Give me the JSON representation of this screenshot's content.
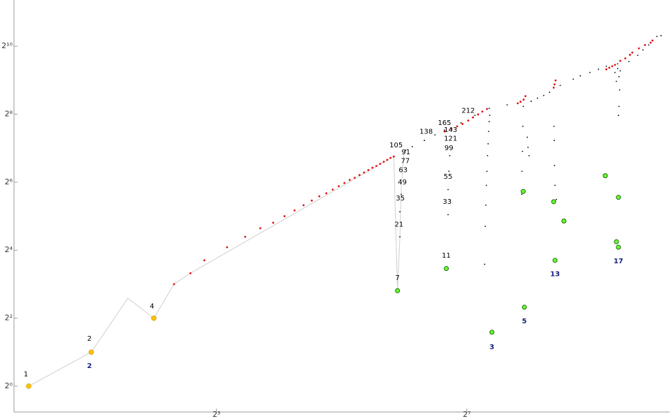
{
  "chart_data": {
    "type": "scatter",
    "xscale": "log2",
    "yscale": "log2",
    "xlim": [
      0.85,
      1209
    ],
    "ylim": [
      0.59,
      2628
    ],
    "xticks": [
      {
        "value": 8,
        "label": "2³"
      },
      {
        "value": 128,
        "label": "2⁷"
      }
    ],
    "yticks": [
      {
        "value": 1,
        "label": "2⁰"
      },
      {
        "value": 4,
        "label": "2²"
      },
      {
        "value": 16,
        "label": "2⁴"
      },
      {
        "value": 64,
        "label": "2⁶"
      },
      {
        "value": 256,
        "label": "2⁸"
      },
      {
        "value": 1024,
        "label": "2¹⁰"
      }
    ],
    "series": [
      {
        "marker": "line",
        "color": "#cfcfcf",
        "x": [
          1,
          2,
          3,
          4,
          5,
          6,
          57,
          59.4,
          61,
          62,
          64
        ],
        "values": [
          1,
          2,
          6,
          4,
          8,
          10,
          108,
          7,
          21,
          60,
          123
        ]
      },
      {
        "marker": "dot",
        "color": "#e01010",
        "x": [
          5,
          6,
          7,
          9,
          11,
          13,
          15,
          17,
          19,
          21,
          23,
          25,
          27,
          29,
          31,
          33,
          35,
          37,
          39,
          41,
          43,
          45,
          47,
          49,
          51,
          53,
          55,
          57
        ],
        "values": [
          8,
          10,
          13,
          17,
          21,
          25,
          28,
          32,
          36,
          40,
          44,
          48,
          51,
          55,
          59,
          63,
          67,
          70,
          74,
          78,
          82,
          86,
          89,
          93,
          97,
          101,
          105,
          108
        ]
      },
      {
        "marker": "small",
        "color": "#000000",
        "x": [
          65,
          70,
          80,
          90,
          100,
          120,
          140,
          164,
          200,
          261,
          280,
          300,
          320,
          360,
          416,
          450,
          500,
          550,
          600,
          680,
          771,
          850,
          900,
          960,
          1050,
          1100
        ],
        "values": [
          123,
          132,
          150,
          168,
          185,
          215,
          250,
          288,
          310,
          333,
          355,
          375,
          400,
          460,
          523,
          560,
          600,
          640,
          680,
          715,
          749,
          850,
          950,
          1050,
          1250,
          1270
        ]
      },
      {
        "marker": "dot",
        "color": "#e01010",
        "x": [
          100,
          108,
          115,
          122,
          130,
          137,
          145,
          152,
          160,
          225,
          232,
          240,
          245,
          335,
          338,
          342,
          600,
          620,
          640,
          660,
          700,
          740,
          780,
          800,
          860,
          920,
          980,
          1000
        ],
        "values": [
          180,
          190,
          200,
          210,
          225,
          240,
          255,
          270,
          285,
          320,
          330,
          345,
          370,
          440,
          470,
          510,
          640,
          660,
          680,
          700,
          760,
          800,
          860,
          900,
          980,
          1050,
          1100,
          1150
        ]
      },
      {
        "marker": "small",
        "color": "#000000",
        "x": [
          61,
          61,
          62,
          104,
          104,
          105,
          106,
          165,
          164,
          163,
          162,
          161,
          160,
          159,
          158,
          157,
          156,
          239,
          238,
          237,
          236,
          235,
          250,
          252,
          255,
          336,
          337,
          338,
          340,
          345,
          660,
          670,
          680,
          690,
          700,
          686,
          690,
          695
        ],
        "values": [
          21,
          35,
          50,
          33,
          55,
          80,
          110,
          250,
          220,
          180,
          140,
          110,
          80,
          60,
          40,
          26,
          12,
          300,
          200,
          120,
          80,
          50,
          160,
          130,
          110,
          200,
          150,
          90,
          60,
          45,
          600,
          500,
          650,
          550,
          620,
          250,
          300,
          420
        ]
      },
      {
        "marker": "halo",
        "color": "#ffc000",
        "x": [
          1,
          2,
          4
        ],
        "values": [
          1,
          2,
          4
        ]
      },
      {
        "marker": "green",
        "color": "#66ff33",
        "x": [
          59.4,
          102,
          169,
          242,
          340,
          686,
          239,
          335,
          375,
          593,
          686,
          671
        ],
        "values": [
          7,
          11,
          3,
          5,
          13,
          17,
          53,
          43,
          29,
          73,
          47,
          19
        ]
      }
    ],
    "annotations": [
      {
        "text": "1",
        "x": 0.97,
        "y": 1.27,
        "color": "#000000"
      },
      {
        "text": "2",
        "x": 1.96,
        "y": 2.63,
        "color": "#000000"
      },
      {
        "text": "4",
        "x": 3.92,
        "y": 5.1,
        "color": "#000000"
      },
      {
        "text": "2",
        "x": 1.96,
        "y": 1.51,
        "color": "#1a237e"
      },
      {
        "text": "3",
        "x": 169,
        "y": 2.22,
        "color": "#1a237e"
      },
      {
        "text": "5",
        "x": 242,
        "y": 3.76,
        "color": "#1a237e"
      },
      {
        "text": "13",
        "x": 340,
        "y": 9.8,
        "color": "#1a237e"
      },
      {
        "text": "17",
        "x": 686,
        "y": 12.8,
        "color": "#1a237e"
      },
      {
        "text": "105",
        "x": 58.5,
        "y": 136,
        "color": "#000000"
      },
      {
        "text": "91",
        "x": 65.2,
        "y": 118,
        "color": "#000000"
      },
      {
        "text": "77",
        "x": 64.8,
        "y": 99,
        "color": "#000000"
      },
      {
        "text": "63",
        "x": 63.2,
        "y": 82,
        "color": "#000000"
      },
      {
        "text": "49",
        "x": 62.7,
        "y": 64,
        "color": "#000000"
      },
      {
        "text": "35",
        "x": 61.3,
        "y": 46,
        "color": "#000000"
      },
      {
        "text": "21",
        "x": 60.4,
        "y": 27,
        "color": "#000000"
      },
      {
        "text": "7",
        "x": 59.4,
        "y": 9.1,
        "color": "#000000"
      },
      {
        "text": "138",
        "x": 81.6,
        "y": 180,
        "color": "#000000"
      },
      {
        "text": "165",
        "x": 100,
        "y": 214,
        "color": "#000000"
      },
      {
        "text": "143",
        "x": 107,
        "y": 186,
        "color": "#000000"
      },
      {
        "text": "121",
        "x": 107,
        "y": 156,
        "color": "#000000"
      },
      {
        "text": "99",
        "x": 105,
        "y": 128,
        "color": "#000000"
      },
      {
        "text": "55",
        "x": 104,
        "y": 71.5,
        "color": "#000000"
      },
      {
        "text": "33",
        "x": 103,
        "y": 43,
        "color": "#000000"
      },
      {
        "text": "11",
        "x": 102,
        "y": 14.3,
        "color": "#000000"
      },
      {
        "text": "212",
        "x": 130,
        "y": 276,
        "color": "#000000"
      }
    ]
  }
}
